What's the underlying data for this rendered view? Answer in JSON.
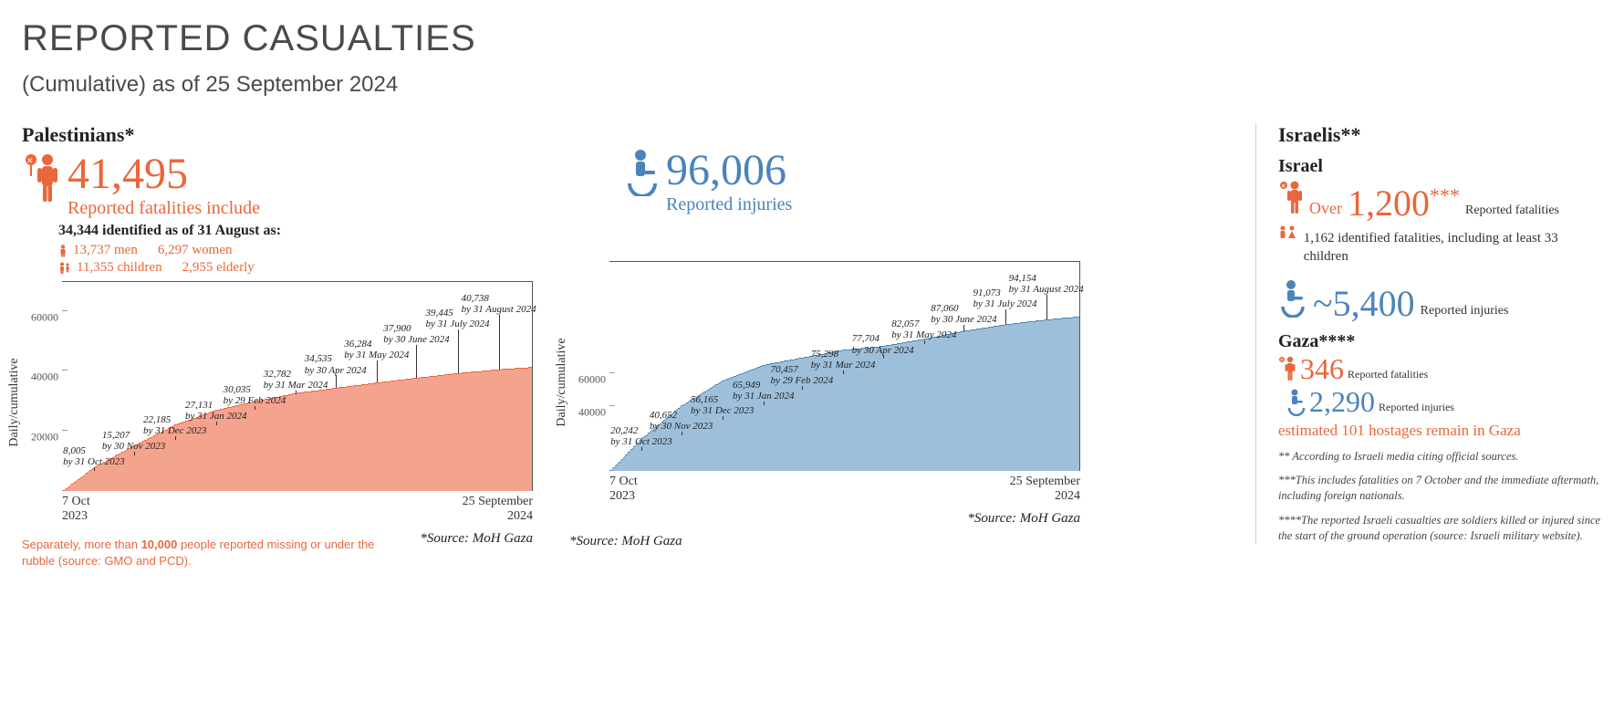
{
  "header": {
    "title": "REPORTED CASUALTIES",
    "subtitle": "(Cumulative) as of 25 September 2024"
  },
  "palestinians": {
    "title": "Palestinians*",
    "fatalities_value": "41,495",
    "fatalities_label": "Reported fatalities include",
    "identified_header": "34,344 identified as of 31 August as:",
    "breakdown_men": "13,737 men",
    "breakdown_women": "6,297 women",
    "breakdown_children": "11,355 children",
    "breakdown_elderly": "2,955 elderly",
    "missing_note_pre": "Separately, more than ",
    "missing_note_bold": "10,000",
    "missing_note_post": " people reported missing or under the rubble (source: GMO and PCD).",
    "source": "*Source: MoH Gaza",
    "chart": {
      "type": "cumulative-bar-area",
      "y_label": "Daily/cumulative",
      "y_max": 70000,
      "y_ticks": [
        20000,
        40000,
        60000
      ],
      "y_tick_labels": [
        "20000",
        "40000",
        "60000"
      ],
      "x_start_top": "7 Oct",
      "x_start_bottom": "2023",
      "x_end_top": "25 September",
      "x_end_bottom": "2024",
      "fill_color": "#f4a38e",
      "stroke_color": "#e8673c",
      "n_days": 354,
      "callouts": [
        {
          "day": 24,
          "value": 8005,
          "l1": "8,005",
          "l2": "by 31 Oct 2023"
        },
        {
          "day": 54,
          "value": 15207,
          "l1": "15,207",
          "l2": "by 30 Nov 2023"
        },
        {
          "day": 85,
          "value": 22185,
          "l1": "22,185",
          "l2": "by 31 Dec 2023"
        },
        {
          "day": 116,
          "value": 27131,
          "l1": "27,131",
          "l2": "by 31 Jan 2024"
        },
        {
          "day": 145,
          "value": 30035,
          "l1": "30,035",
          "l2": "by 29 Feb 2024"
        },
        {
          "day": 176,
          "value": 32782,
          "l1": "32,782",
          "l2": "by 31 Mar 2024"
        },
        {
          "day": 206,
          "value": 34535,
          "l1": "34,535",
          "l2": "by 30 Apr 2024"
        },
        {
          "day": 237,
          "value": 36284,
          "l1": "36,284",
          "l2": "by 31 May 2024"
        },
        {
          "day": 267,
          "value": 37900,
          "l1": "37,900",
          "l2": "by 30 June 2024"
        },
        {
          "day": 298,
          "value": 39445,
          "l1": "39,445",
          "l2": "by 31 July 2024"
        },
        {
          "day": 329,
          "value": 40738,
          "l1": "40,738",
          "l2": "by 31 August 2024"
        }
      ]
    }
  },
  "injuries": {
    "value": "96,006",
    "label": "Reported injuries",
    "source": "*Source: MoH Gaza",
    "chart": {
      "type": "cumulative-bar-area",
      "y_label": "Daily/cumulative",
      "y_max": 130000,
      "y_ticks": [
        40000,
        60000
      ],
      "y_tick_labels": [
        "40000",
        "60000"
      ],
      "x_start_top": "7 Oct",
      "x_start_bottom": "2023",
      "x_end_top": "25 September",
      "x_end_bottom": "2024",
      "fill_color": "#9ebfda",
      "stroke_color": "#4a84bb",
      "n_days": 354,
      "callouts": [
        {
          "day": 24,
          "value": 20242,
          "l1": "20,242",
          "l2": "by 31 Oct 2023"
        },
        {
          "day": 54,
          "value": 40652,
          "l1": "40,652",
          "l2": "by 30 Nov 2023"
        },
        {
          "day": 85,
          "value": 56165,
          "l1": "56,165",
          "l2": "by 31 Dec 2023"
        },
        {
          "day": 116,
          "value": 65949,
          "l1": "65,949",
          "l2": "by 31 Jan 2024"
        },
        {
          "day": 145,
          "value": 70457,
          "l1": "70,457",
          "l2": "by 29 Feb 2024"
        },
        {
          "day": 176,
          "value": 75298,
          "l1": "75,298",
          "l2": "by 31 Mar 2024"
        },
        {
          "day": 206,
          "value": 77704,
          "l1": "77,704",
          "l2": "by 30 Apr 2024"
        },
        {
          "day": 237,
          "value": 82057,
          "l1": "82,057",
          "l2": "by 31 May 2024"
        },
        {
          "day": 267,
          "value": 87060,
          "l1": "87,060",
          "l2": "by 30 June 2024"
        },
        {
          "day": 298,
          "value": 91073,
          "l1": "91,073",
          "l2": "by 31 July 2024"
        },
        {
          "day": 329,
          "value": 94154,
          "l1": "94,154",
          "l2": "by 31 August 2024"
        }
      ]
    }
  },
  "israelis": {
    "title": "Israelis**",
    "israel_heading": "Israel",
    "fatalities_prefix": "Over",
    "fatalities_value": "1,200",
    "fatalities_stars": "***",
    "fatalities_label": "Reported fatalities",
    "identified": "1,162 identified fatalities, including at least 33 children",
    "injuries_prefix": "~",
    "injuries_value": "5,400",
    "injuries_label": "Reported injuries",
    "gaza_heading": "Gaza****",
    "gaza_fatalities_value": "346",
    "gaza_fatalities_label": "Reported fatalities",
    "gaza_injuries_value": "2,290",
    "gaza_injuries_label": "Reported injuries",
    "hostages": "estimated 101 hostages remain in Gaza",
    "footnote2": "** According to Israeli media citing official sources.",
    "footnote3": "***This includes fatalities on 7 October and the immediate aftermath, including foreign nationals.",
    "footnote4": "****The reported Israeli casualties are soldiers killed or injured since the start of the ground operation (source: Israeli military website)."
  },
  "colors": {
    "orange": "#e8673c",
    "blue": "#4a84bb",
    "text": "#333333",
    "axis": "#555555"
  }
}
